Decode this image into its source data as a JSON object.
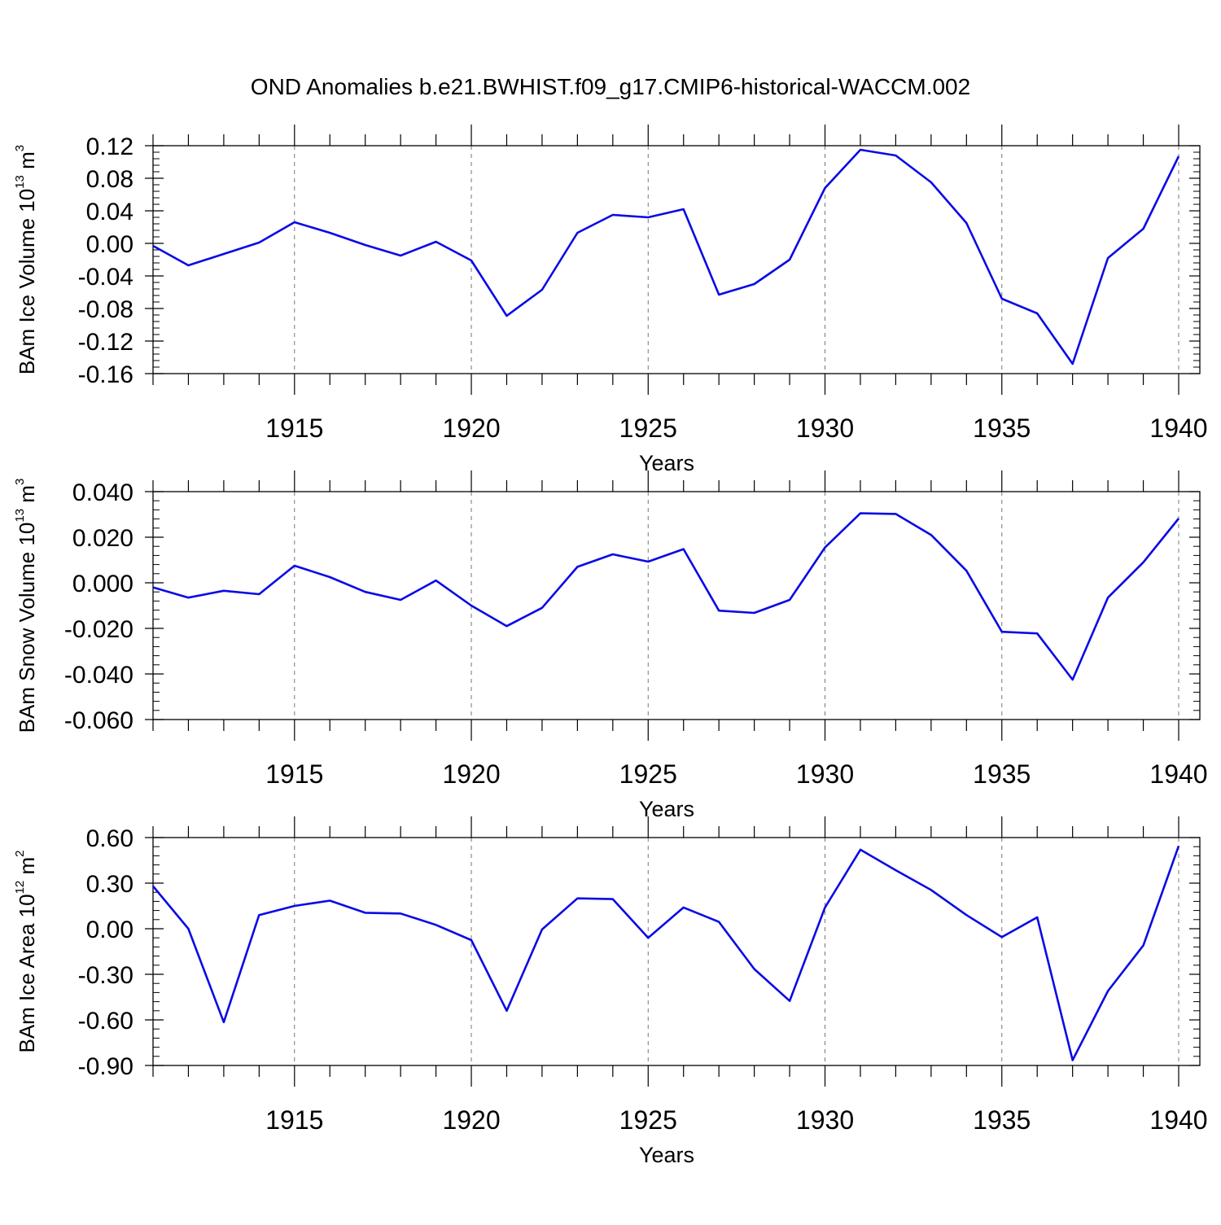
{
  "title": "OND Anomalies b.e21.BWHIST.f09_g17.CMIP6-historical-WACCM.002",
  "colors": {
    "line": "#0a0ae6",
    "axis": "#000000",
    "grid": "#777777"
  },
  "chart_data": [
    {
      "type": "line",
      "ylabel": {
        "main": "BAm Ice Volume 10",
        "exp": "13",
        "unit": " m",
        "unit_exp": "3"
      },
      "xlabel": "Years",
      "xlim": [
        1911,
        1940
      ],
      "ylim": [
        -0.16,
        0.12
      ],
      "yticks": [
        "0.12",
        "0.08",
        "0.04",
        "0.00",
        "-0.04",
        "-0.08",
        "-0.12",
        "-0.16"
      ],
      "xticks": [
        "1915",
        "1920",
        "1925",
        "1930",
        "1935",
        "1940"
      ],
      "grid": "vertical dashed at labeled years",
      "series": [
        {
          "x": [
            1911,
            1912,
            1913,
            1914,
            1915,
            1916,
            1917,
            1918,
            1919,
            1920,
            1921,
            1922,
            1923,
            1924,
            1925,
            1926,
            1927,
            1928,
            1929,
            1930,
            1931,
            1932,
            1933,
            1934,
            1935,
            1936,
            1937,
            1938,
            1939,
            1940
          ],
          "values": [
            -0.003,
            -0.027,
            -0.013,
            0.001,
            0.026,
            0.013,
            -0.002,
            -0.015,
            0.002,
            -0.021,
            -0.089,
            -0.057,
            0.013,
            0.035,
            0.032,
            0.042,
            -0.063,
            -0.05,
            -0.02,
            0.068,
            0.115,
            0.108,
            0.075,
            0.025,
            -0.068,
            -0.086,
            -0.148,
            -0.018,
            0.018,
            0.107
          ]
        }
      ]
    },
    {
      "type": "line",
      "ylabel": {
        "main": "BAm Snow Volume 10",
        "exp": "13",
        "unit": " m",
        "unit_exp": "3"
      },
      "xlabel": "Years",
      "xlim": [
        1911,
        1940
      ],
      "ylim": [
        -0.06,
        0.04
      ],
      "yticks": [
        "0.040",
        "0.020",
        "0.000",
        "-0.020",
        "-0.040",
        "-0.060"
      ],
      "xticks": [
        "1915",
        "1920",
        "1925",
        "1930",
        "1935",
        "1940"
      ],
      "grid": "vertical dashed at labeled years",
      "series": [
        {
          "x": [
            1911,
            1912,
            1913,
            1914,
            1915,
            1916,
            1917,
            1918,
            1919,
            1920,
            1921,
            1922,
            1923,
            1924,
            1925,
            1926,
            1927,
            1928,
            1929,
            1930,
            1931,
            1932,
            1933,
            1934,
            1935,
            1936,
            1937,
            1938,
            1939,
            1940
          ],
          "values": [
            -0.002,
            -0.0065,
            -0.0035,
            -0.005,
            0.0075,
            0.0025,
            -0.004,
            -0.0075,
            0.001,
            -0.01,
            -0.019,
            -0.011,
            0.007,
            0.0125,
            0.0093,
            0.0148,
            -0.0122,
            -0.0132,
            -0.0075,
            0.0155,
            0.0305,
            0.0302,
            0.021,
            0.0053,
            -0.0215,
            -0.0222,
            -0.0425,
            -0.0065,
            0.009,
            0.0282
          ]
        }
      ]
    },
    {
      "type": "line",
      "ylabel": {
        "main": "BAm Ice Area 10",
        "exp": "12",
        "unit": " m",
        "unit_exp": "2"
      },
      "xlabel": "Years",
      "xlim": [
        1911,
        1940
      ],
      "ylim": [
        -0.9,
        0.6
      ],
      "yticks": [
        "0.60",
        "0.30",
        "0.00",
        "-0.30",
        "-0.60",
        "-0.90"
      ],
      "xticks": [
        "1915",
        "1920",
        "1925",
        "1930",
        "1935",
        "1940"
      ],
      "grid": "vertical dashed at labeled years",
      "series": [
        {
          "x": [
            1911,
            1912,
            1913,
            1914,
            1915,
            1916,
            1917,
            1918,
            1919,
            1920,
            1921,
            1922,
            1923,
            1924,
            1925,
            1926,
            1927,
            1928,
            1929,
            1930,
            1931,
            1932,
            1933,
            1934,
            1935,
            1936,
            1937,
            1938,
            1939,
            1940
          ],
          "values": [
            0.28,
            0.0,
            -0.615,
            0.09,
            0.15,
            0.185,
            0.105,
            0.1,
            0.025,
            -0.075,
            -0.54,
            -0.005,
            0.2,
            0.195,
            -0.06,
            0.14,
            0.045,
            -0.265,
            -0.475,
            0.14,
            0.52,
            0.385,
            0.255,
            0.09,
            -0.055,
            0.075,
            -0.865,
            -0.41,
            -0.11,
            0.545
          ]
        }
      ]
    }
  ]
}
